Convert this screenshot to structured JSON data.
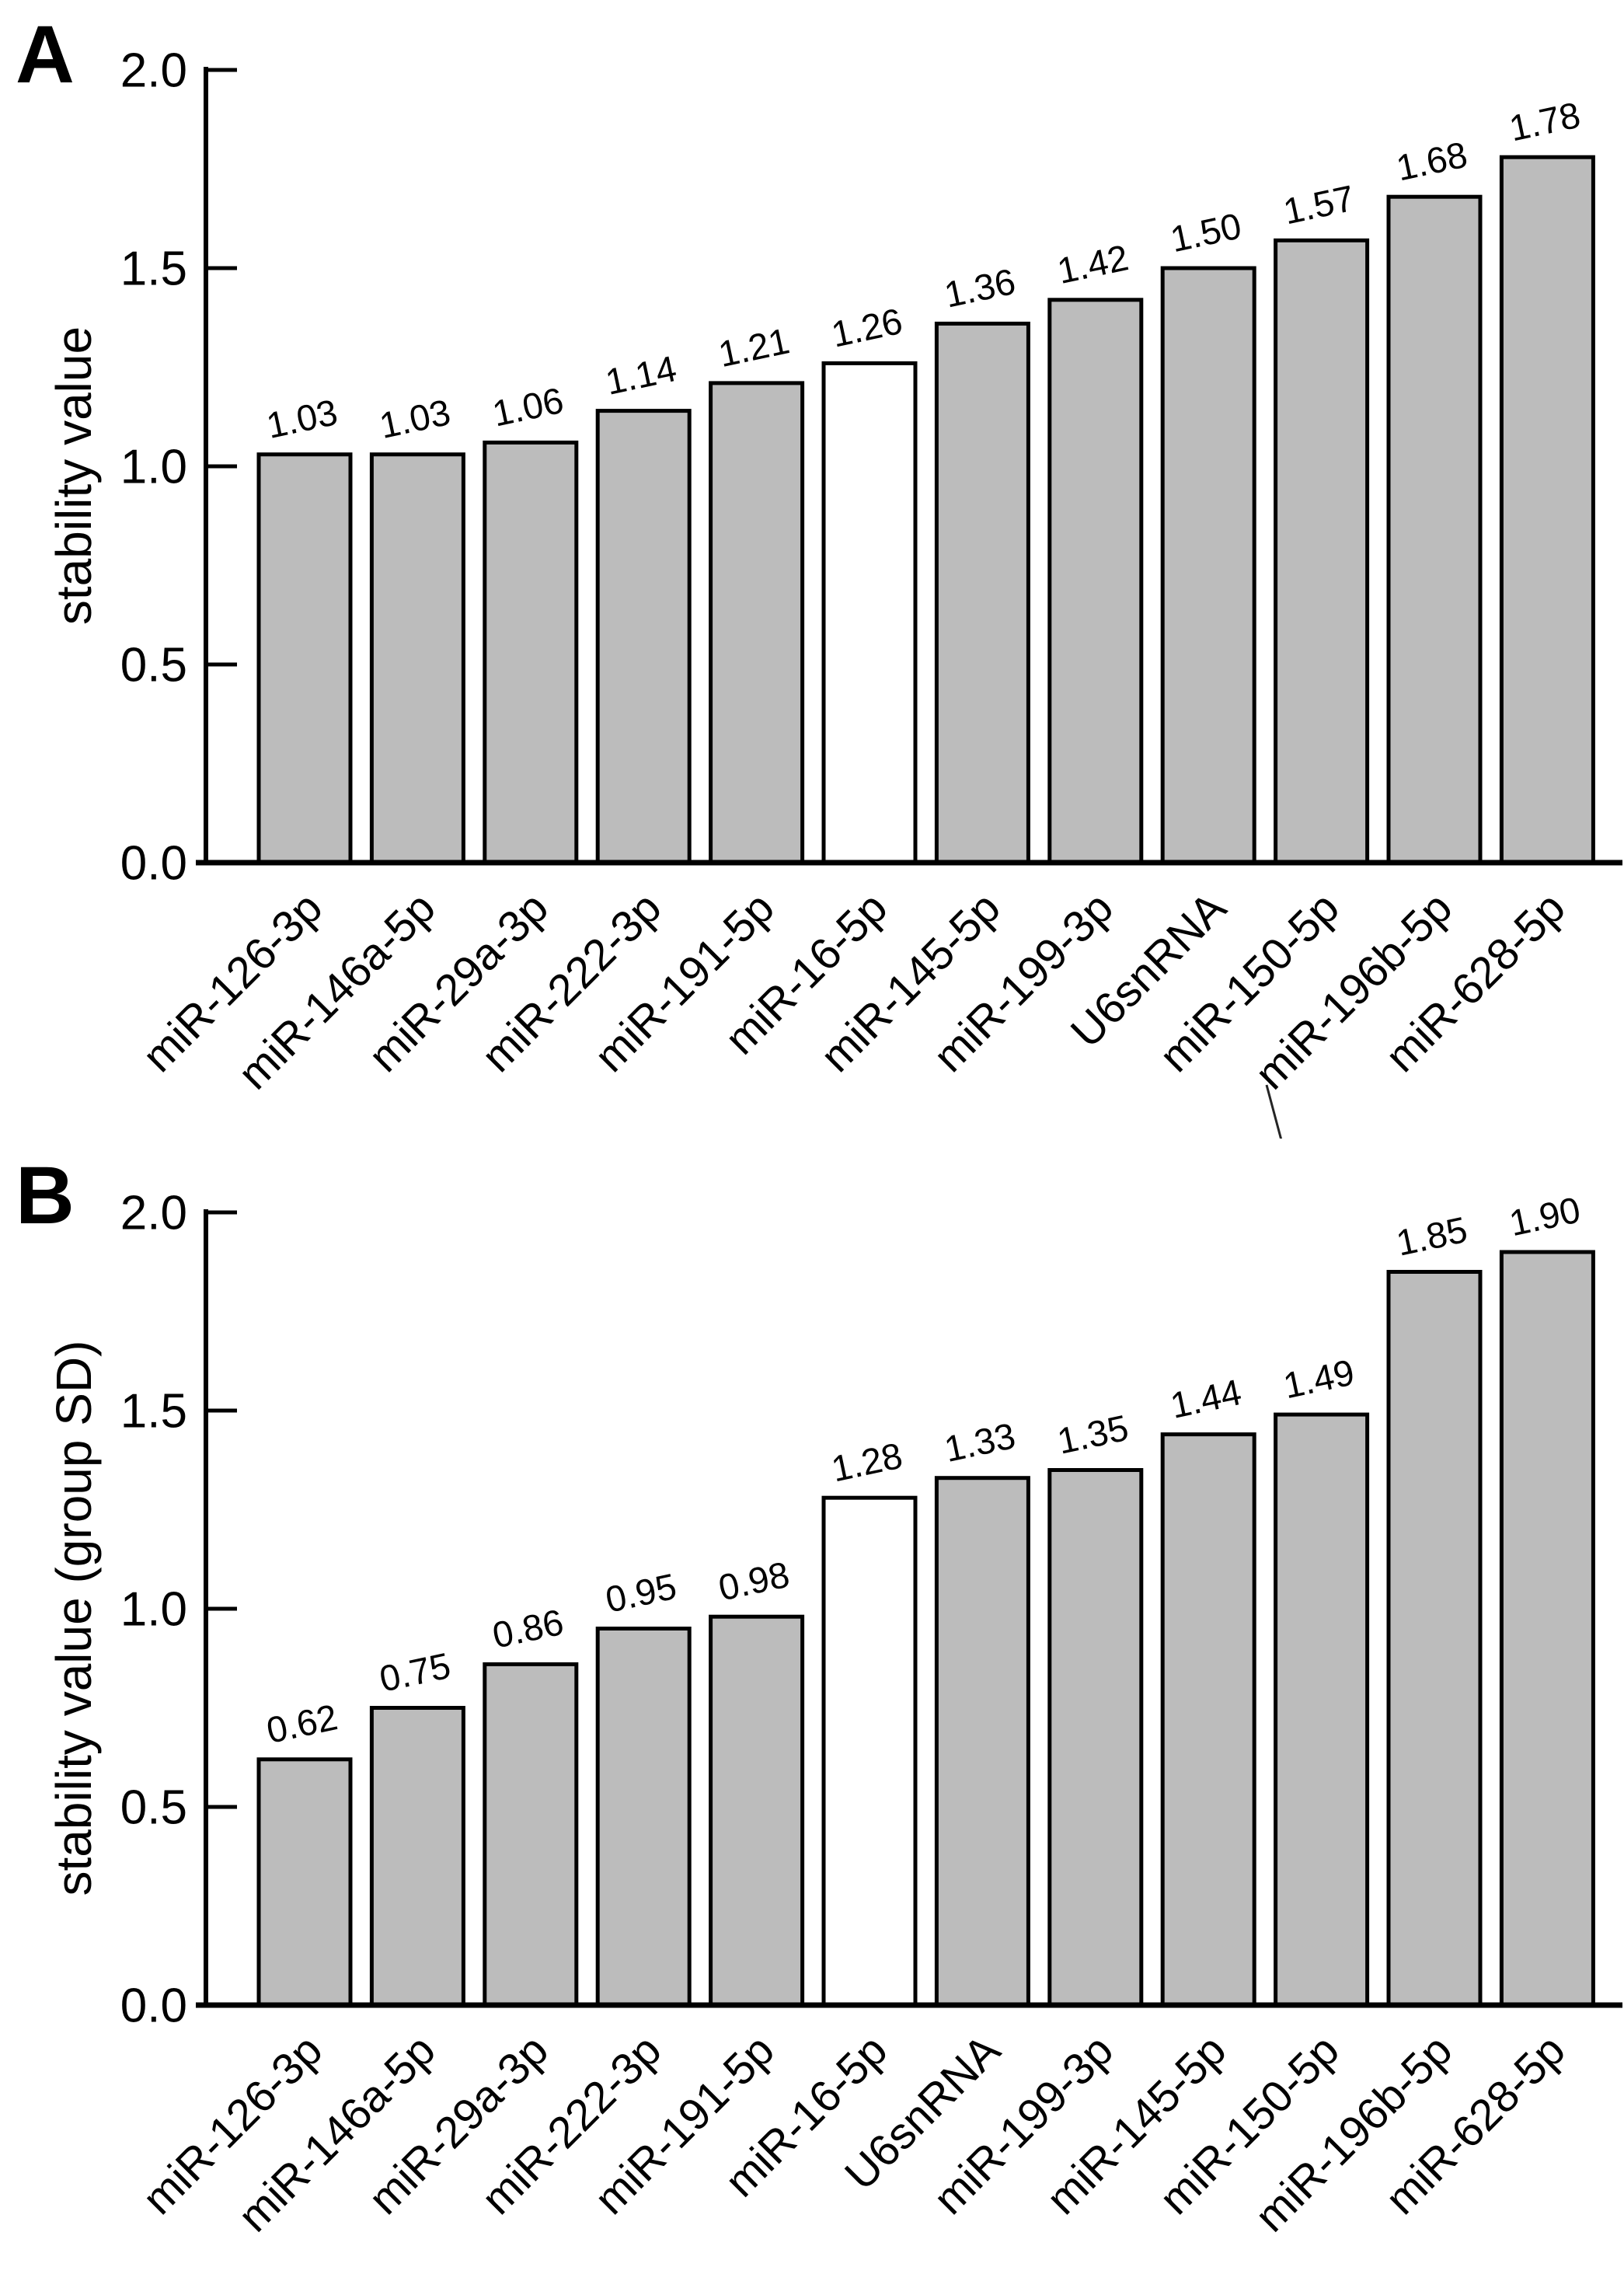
{
  "figure": {
    "background": "#ffffff",
    "text_color": "#000000"
  },
  "chart_data": [
    {
      "type": "bar",
      "panel_label": "A",
      "ylabel": "stability value",
      "xlabel": "",
      "ylim": [
        0,
        2
      ],
      "grid": false,
      "legend": false,
      "yticks": [
        {
          "v": 2.0,
          "label": "2.0"
        },
        {
          "v": 1.5,
          "label": "1.5"
        },
        {
          "v": 1.0,
          "label": "1.0"
        },
        {
          "v": 0.5,
          "label": "0.5"
        },
        {
          "v": 0.0,
          "label": "0.0"
        }
      ],
      "categories": [
        "miR-126-3p",
        "miR-146a-5p",
        "miR-29a-3p",
        "miR-222-3p",
        "miR-191-5p",
        "miR-16-5p",
        "miR-145-5p",
        "miR-199-3p",
        "U6snRNA",
        "miR-150-5p",
        "miR-196b-5p",
        "miR-628-5p"
      ],
      "values": [
        1.03,
        1.03,
        1.06,
        1.14,
        1.21,
        1.26,
        1.36,
        1.42,
        1.5,
        1.57,
        1.68,
        1.78
      ],
      "values_display": [
        "1.03",
        "1.03",
        "1.06",
        "1.14",
        "1.21",
        "1.26",
        "1.36",
        "1.42",
        "1.50",
        "1.57",
        "1.68",
        "1.78"
      ],
      "highlight_category": "miR-16-5p",
      "highlight_index": 5,
      "bar_fill": "#bcbcbc",
      "highlight_fill": "#ffffff",
      "bar_stroke": "#000000"
    },
    {
      "type": "bar",
      "panel_label": "B",
      "ylabel": "stability value (group SD)",
      "xlabel": "",
      "ylim": [
        0,
        2
      ],
      "grid": false,
      "legend": false,
      "yticks": [
        {
          "v": 2.0,
          "label": "2.0"
        },
        {
          "v": 1.5,
          "label": "1.5"
        },
        {
          "v": 1.0,
          "label": "1.0"
        },
        {
          "v": 0.5,
          "label": "0.5"
        },
        {
          "v": 0.0,
          "label": "0.0"
        }
      ],
      "categories": [
        "miR-126-3p",
        "miR-146a-5p",
        "miR-29a-3p",
        "miR-222-3p",
        "miR-191-5p",
        "miR-16-5p",
        "U6snRNA",
        "miR-199-3p",
        "miR-145-5p",
        "miR-150-5p",
        "miR-196b-5p",
        "miR-628-5p"
      ],
      "values": [
        0.62,
        0.75,
        0.86,
        0.95,
        0.98,
        1.28,
        1.33,
        1.35,
        1.44,
        1.49,
        1.85,
        1.9
      ],
      "values_display": [
        "0.62",
        "0.75",
        "0.86",
        "0.95",
        "0.98",
        "1.28",
        "1.33",
        "1.35",
        "1.44",
        "1.49",
        "1.85",
        "1.90"
      ],
      "highlight_category": "miR-16-5p",
      "highlight_index": 5,
      "bar_fill": "#bcbcbc",
      "highlight_fill": "#ffffff",
      "bar_stroke": "#000000"
    }
  ]
}
